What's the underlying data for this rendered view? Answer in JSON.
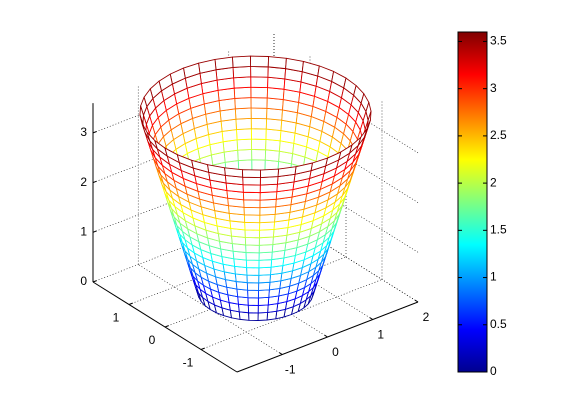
{
  "chart_data": {
    "type": "mesh",
    "colormap": "jet",
    "z": [
      0,
      0.18,
      0.36,
      0.54,
      0.72,
      0.9,
      1.08,
      1.26,
      1.44,
      1.62,
      1.8,
      1.98,
      2.16,
      2.34,
      2.52,
      2.7,
      2.88,
      3.06,
      3.24,
      3.42,
      3.6
    ],
    "r": [
      1,
      1.05,
      1.1,
      1.15,
      1.2,
      1.25,
      1.3,
      1.35,
      1.4,
      1.45,
      1.5,
      1.55,
      1.6,
      1.65,
      1.7,
      1.75,
      1.8,
      1.85,
      1.9,
      1.95,
      2
    ],
    "xlim": [
      -2,
      2
    ],
    "ylim": [
      -2,
      2
    ],
    "zlim": [
      0,
      3.6
    ],
    "xticks": [
      -1,
      0,
      1,
      2
    ],
    "yticks": [
      -1,
      0,
      1
    ],
    "zticks": [
      0,
      1,
      2,
      3
    ],
    "grid": true,
    "clim": [
      0,
      3.6
    ],
    "cticks": [
      0,
      0.5,
      1,
      1.5,
      2,
      2.5,
      3,
      3.5
    ]
  }
}
